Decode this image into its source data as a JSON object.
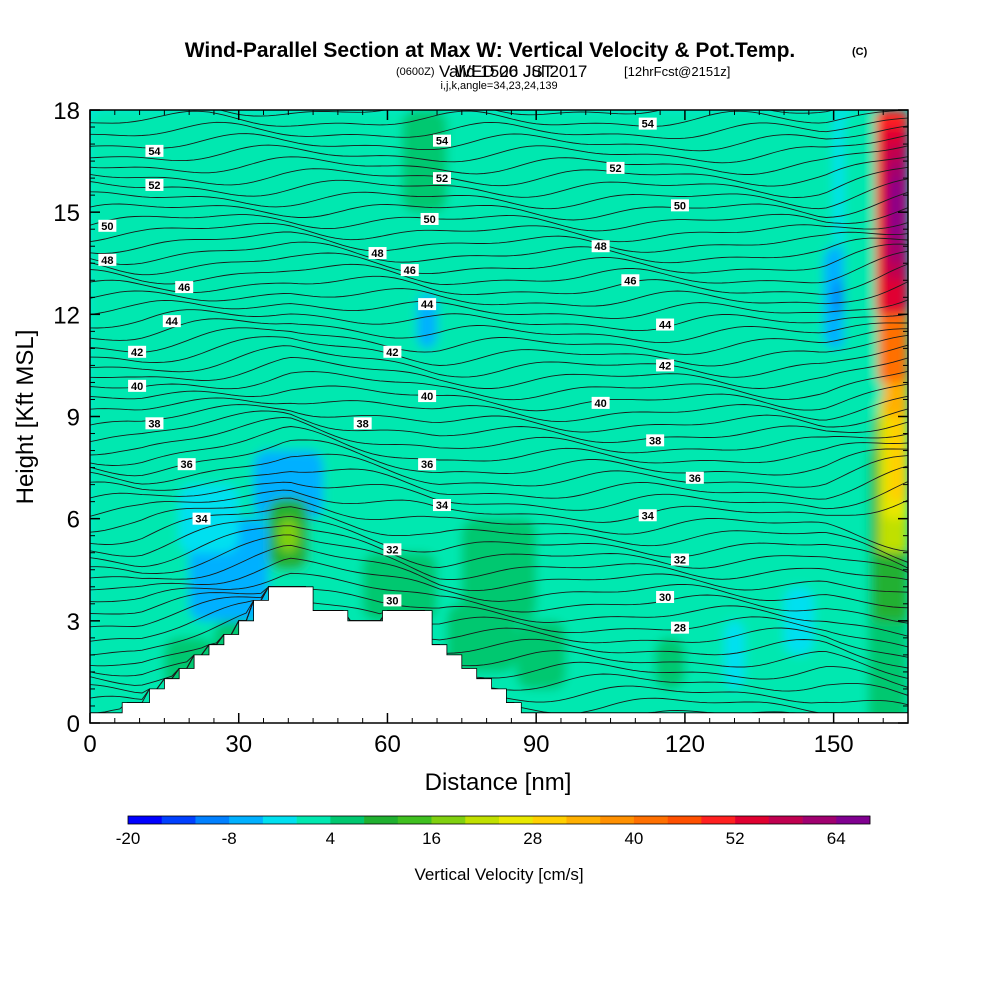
{
  "title": "Wind-Parallel Section at Max W: Vertical Velocity & Pot.Temp.",
  "title_mark": "(C)",
  "subtitle_a": "Valid 1500 JST",
  "subtitle_b": "(0600Z)",
  "subtitle_c": "WED 26 Jul 2017",
  "subtitle_d": "[12hrFcst@2151z]",
  "subtitle_e": "i,j,k,angle=34,23,24,139",
  "chart_data": {
    "type": "heatmap",
    "xlabel": "Distance [nm]",
    "ylabel": "Height [Kft MSL]",
    "xlim": [
      0,
      165
    ],
    "ylim": [
      0,
      18
    ],
    "xticks": [
      0,
      30,
      60,
      90,
      120,
      150
    ],
    "yticks": [
      0,
      3,
      6,
      9,
      12,
      15,
      18
    ],
    "colorbar": {
      "label": "Vertical Velocity [cm/s]",
      "ticks": [
        -20,
        -8,
        4,
        16,
        28,
        40,
        52,
        64
      ],
      "levels": [
        -20,
        -16,
        -12,
        -8,
        -4,
        0,
        4,
        8,
        12,
        16,
        20,
        24,
        28,
        32,
        36,
        40,
        44,
        48,
        52,
        56,
        60,
        64,
        68
      ],
      "colors": [
        "#0000ff",
        "#0040ff",
        "#0080ff",
        "#00b0ff",
        "#00e0f0",
        "#00e8b0",
        "#00c870",
        "#20b030",
        "#40c020",
        "#80d010",
        "#c0e000",
        "#e8e800",
        "#ffd000",
        "#ffb000",
        "#ff9000",
        "#ff7000",
        "#ff5000",
        "#ff2020",
        "#e00030",
        "#c00050",
        "#a00070",
        "#800090"
      ]
    },
    "terrain": [
      [
        0,
        0.3
      ],
      [
        6.5,
        0.3
      ],
      [
        6.5,
        0.6
      ],
      [
        12,
        0.6
      ],
      [
        12,
        1.0
      ],
      [
        15,
        1.0
      ],
      [
        15,
        1.3
      ],
      [
        18,
        1.3
      ],
      [
        18,
        1.6
      ],
      [
        21,
        1.6
      ],
      [
        21,
        2.0
      ],
      [
        24,
        2.0
      ],
      [
        24,
        2.3
      ],
      [
        27,
        2.3
      ],
      [
        27,
        2.6
      ],
      [
        30,
        2.6
      ],
      [
        30,
        3.0
      ],
      [
        33,
        3.0
      ],
      [
        33,
        3.6
      ],
      [
        36,
        3.6
      ],
      [
        36,
        4.0
      ],
      [
        45,
        4.0
      ],
      [
        45,
        3.3
      ],
      [
        52,
        3.3
      ],
      [
        52,
        3.0
      ],
      [
        59,
        3.0
      ],
      [
        59,
        3.3
      ],
      [
        69,
        3.3
      ],
      [
        69,
        2.3
      ],
      [
        72,
        2.3
      ],
      [
        72,
        2.0
      ],
      [
        75,
        2.0
      ],
      [
        75,
        1.6
      ],
      [
        78,
        1.6
      ],
      [
        78,
        1.3
      ],
      [
        81,
        1.3
      ],
      [
        81,
        1.0
      ],
      [
        84,
        1.0
      ],
      [
        84,
        0.6
      ],
      [
        87,
        0.6
      ],
      [
        87,
        0.3
      ],
      [
        165,
        0.3
      ]
    ],
    "potential_temperature": {
      "contour_interval": 1,
      "labeled_levels": [
        {
          "value": "54",
          "x": 13,
          "y": 16.8
        },
        {
          "value": "52",
          "x": 13,
          "y": 15.8
        },
        {
          "value": "50",
          "x": 3.5,
          "y": 14.6
        },
        {
          "value": "48",
          "x": 3.5,
          "y": 13.6
        },
        {
          "value": "46",
          "x": 19,
          "y": 12.8
        },
        {
          "value": "44",
          "x": 16.5,
          "y": 11.8
        },
        {
          "value": "42",
          "x": 9.5,
          "y": 10.9
        },
        {
          "value": "40",
          "x": 9.5,
          "y": 9.9
        },
        {
          "value": "38",
          "x": 13,
          "y": 8.8
        },
        {
          "value": "36",
          "x": 19.5,
          "y": 7.6
        },
        {
          "value": "34",
          "x": 22.5,
          "y": 6.0
        },
        {
          "value": "32",
          "x": 61,
          "y": 5.1
        },
        {
          "value": "30",
          "x": 61,
          "y": 3.6
        },
        {
          "value": "54",
          "x": 71,
          "y": 17.1
        },
        {
          "value": "52",
          "x": 71,
          "y": 16.0
        },
        {
          "value": "50",
          "x": 68.5,
          "y": 14.8
        },
        {
          "value": "48",
          "x": 58,
          "y": 13.8
        },
        {
          "value": "46",
          "x": 64.5,
          "y": 13.3
        },
        {
          "value": "44",
          "x": 68,
          "y": 12.3
        },
        {
          "value": "42",
          "x": 61,
          "y": 10.9
        },
        {
          "value": "40",
          "x": 68,
          "y": 9.6
        },
        {
          "value": "38",
          "x": 55,
          "y": 8.8
        },
        {
          "value": "36",
          "x": 68,
          "y": 7.6
        },
        {
          "value": "34",
          "x": 71,
          "y": 6.4
        },
        {
          "value": "54",
          "x": 112.5,
          "y": 17.6
        },
        {
          "value": "52",
          "x": 106,
          "y": 16.3
        },
        {
          "value": "50",
          "x": 119,
          "y": 15.2
        },
        {
          "value": "48",
          "x": 103,
          "y": 14.0
        },
        {
          "value": "46",
          "x": 109,
          "y": 13.0
        },
        {
          "value": "44",
          "x": 116,
          "y": 11.7
        },
        {
          "value": "42",
          "x": 116,
          "y": 10.5
        },
        {
          "value": "40",
          "x": 103,
          "y": 9.4
        },
        {
          "value": "38",
          "x": 114,
          "y": 8.3
        },
        {
          "value": "36",
          "x": 122,
          "y": 7.2
        },
        {
          "value": "34",
          "x": 112.5,
          "y": 6.1
        },
        {
          "value": "32",
          "x": 119,
          "y": 4.8
        },
        {
          "value": "30",
          "x": 116,
          "y": 3.7
        },
        {
          "value": "28",
          "x": 119,
          "y": 2.8
        }
      ]
    }
  }
}
